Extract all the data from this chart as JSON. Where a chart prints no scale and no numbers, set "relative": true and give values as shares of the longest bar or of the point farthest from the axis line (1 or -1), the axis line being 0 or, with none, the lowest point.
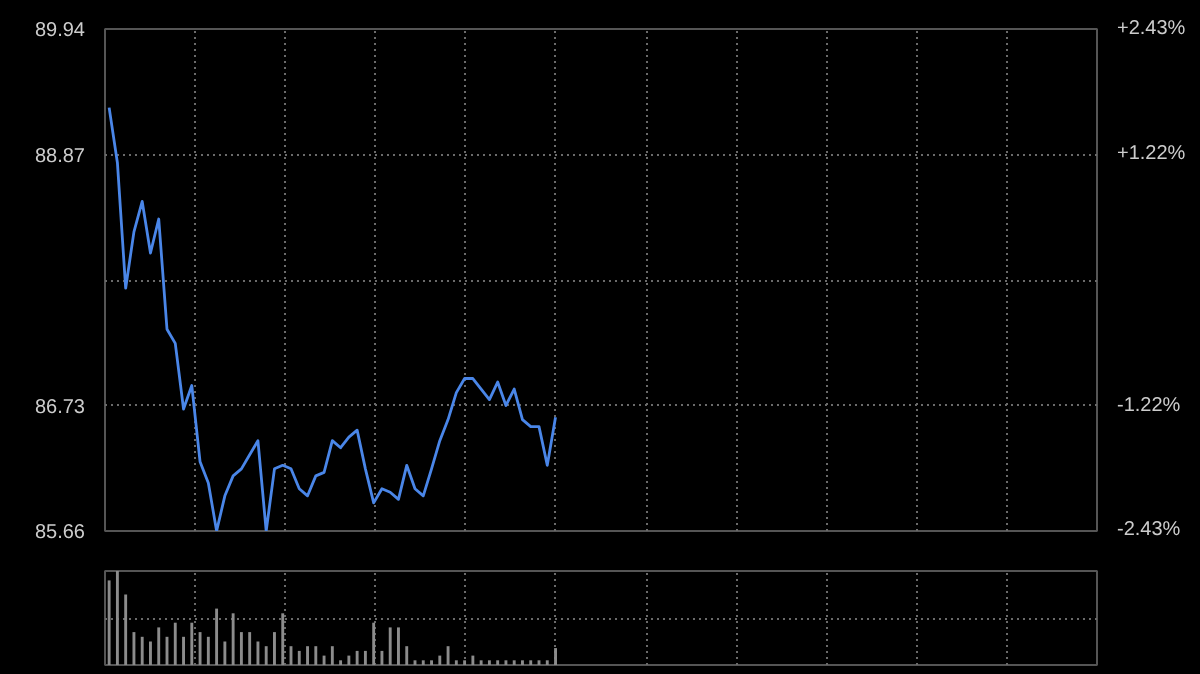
{
  "chart_data": [
    {
      "type": "line",
      "categories": [
        null,
        null,
        null,
        null,
        null,
        null,
        null,
        null,
        null,
        null,
        null,
        null,
        null,
        null,
        null,
        null,
        null,
        null,
        null,
        null,
        null,
        null,
        null,
        null,
        null,
        null,
        null,
        null,
        null,
        null,
        null,
        null,
        null,
        null,
        null,
        null,
        null,
        null,
        null,
        null,
        null,
        null,
        null,
        null,
        null,
        null,
        null,
        null,
        null,
        null,
        null,
        null,
        null,
        null,
        null,
        null,
        null,
        null,
        null,
        null,
        null,
        null,
        null,
        null,
        null,
        null,
        null,
        null,
        null,
        null,
        null,
        null,
        null,
        null,
        null,
        null,
        null,
        null,
        null,
        null,
        null,
        null,
        null,
        null,
        null,
        null,
        null,
        null,
        null,
        null,
        null,
        null,
        null,
        null,
        null,
        null,
        null,
        null,
        null,
        null,
        null,
        null,
        null,
        null,
        null,
        null,
        null,
        null,
        null,
        null,
        null,
        null,
        null,
        null,
        null,
        null,
        null,
        null,
        null,
        null
      ],
      "series": [
        {
          "color": "#4a86e8",
          "values": [
            89.27,
            88.8,
            87.73,
            88.21,
            88.47,
            88.03,
            88.32,
            87.38,
            87.26,
            86.7,
            86.9,
            86.25,
            86.07,
            85.66,
            85.96,
            86.13,
            86.19,
            86.31,
            86.43,
            85.66,
            86.19,
            86.22,
            86.19,
            86.02,
            85.96,
            86.13,
            86.16,
            86.43,
            86.37,
            86.46,
            86.52,
            86.19,
            85.9,
            86.02,
            85.99,
            85.93,
            86.22,
            86.02,
            85.96,
            86.19,
            86.43,
            86.61,
            86.84,
            86.96,
            86.96,
            86.87,
            86.78,
            86.93,
            86.73,
            86.87,
            86.61,
            86.55,
            86.55,
            86.22,
            86.63,
            null,
            null,
            null,
            null,
            null,
            null,
            null,
            null,
            null,
            null,
            null,
            null,
            null,
            null,
            null,
            null,
            null,
            null,
            null,
            null,
            null,
            null,
            null,
            null,
            null,
            null,
            null,
            null,
            null,
            null,
            null,
            null,
            null,
            null,
            null,
            null,
            null,
            null,
            null,
            null,
            null,
            null,
            null,
            null,
            null,
            null,
            null,
            null,
            null,
            null,
            null,
            null,
            null,
            null,
            null,
            null,
            null,
            null,
            null,
            null,
            null,
            null,
            null,
            null,
            null
          ]
        }
      ],
      "ylim": [
        85.66,
        89.94
      ],
      "yticks": [
        85.66,
        86.73,
        {
          "value": 87.8,
          "label": null
        },
        88.87,
        89.94
      ],
      "y2lim": [
        -2.43,
        2.43
      ],
      "y2ticks": [
        {
          "value": -2.43,
          "label": "-2.43%"
        },
        {
          "value": -1.22,
          "label": "-1.22%"
        },
        {
          "value": 0,
          "label": null
        },
        {
          "value": 1.22,
          "label": "+1.22%"
        },
        {
          "value": 2.43,
          "label": "+2.43%"
        }
      ],
      "tick_labels": "y",
      "grid": true,
      "marker": "none",
      "line_style": "solid"
    },
    {
      "type": "bar",
      "relative": true,
      "categories": [
        null,
        null,
        null,
        null,
        null,
        null,
        null,
        null,
        null,
        null,
        null,
        null,
        null,
        null,
        null,
        null,
        null,
        null,
        null,
        null,
        null,
        null,
        null,
        null,
        null,
        null,
        null,
        null,
        null,
        null,
        null,
        null,
        null,
        null,
        null,
        null,
        null,
        null,
        null,
        null,
        null,
        null,
        null,
        null,
        null,
        null,
        null,
        null,
        null,
        null,
        null,
        null,
        null,
        null,
        null,
        null,
        null,
        null,
        null,
        null,
        null,
        null,
        null,
        null,
        null,
        null,
        null,
        null,
        null,
        null,
        null,
        null,
        null,
        null,
        null,
        null,
        null,
        null,
        null,
        null,
        null,
        null,
        null,
        null,
        null,
        null,
        null,
        null,
        null,
        null,
        null,
        null,
        null,
        null,
        null,
        null,
        null,
        null,
        null,
        null,
        null,
        null,
        null,
        null,
        null,
        null,
        null,
        null,
        null,
        null,
        null,
        null,
        null,
        null,
        null,
        null,
        null,
        null,
        null,
        null
      ],
      "series": [
        {
          "color": "#8c8c8c",
          "values": [
            0.9,
            1.0,
            0.75,
            0.35,
            0.3,
            0.25,
            0.4,
            0.3,
            0.45,
            0.3,
            0.45,
            0.35,
            0.3,
            0.6,
            0.25,
            0.55,
            0.35,
            0.35,
            0.25,
            0.2,
            0.35,
            0.55,
            0.2,
            0.15,
            0.2,
            0.2,
            0.1,
            0.2,
            0.05,
            0.1,
            0.15,
            0.15,
            0.45,
            0.15,
            0.4,
            0.4,
            0.2,
            0.05,
            0.05,
            0.05,
            0.1,
            0.2,
            0.05,
            0.05,
            0.1,
            0.05,
            0.05,
            0.05,
            0.05,
            0.05,
            0.05,
            0.05,
            0.05,
            0.05,
            0.18,
            null,
            null,
            null,
            null,
            null,
            null,
            null,
            null,
            null,
            null,
            null,
            null,
            null,
            null,
            null,
            null,
            null,
            null,
            null,
            null,
            null,
            null,
            null,
            null,
            null,
            null,
            null,
            null,
            null,
            null,
            null,
            null,
            null,
            null,
            null,
            null,
            null,
            null,
            null,
            null,
            null,
            null,
            null,
            null,
            null,
            null,
            null,
            null,
            null,
            null,
            null,
            null,
            null,
            null,
            null,
            null,
            null,
            null,
            null,
            null,
            null,
            null,
            null,
            null,
            null
          ]
        }
      ],
      "tick_labels": false,
      "grid": true
    }
  ]
}
